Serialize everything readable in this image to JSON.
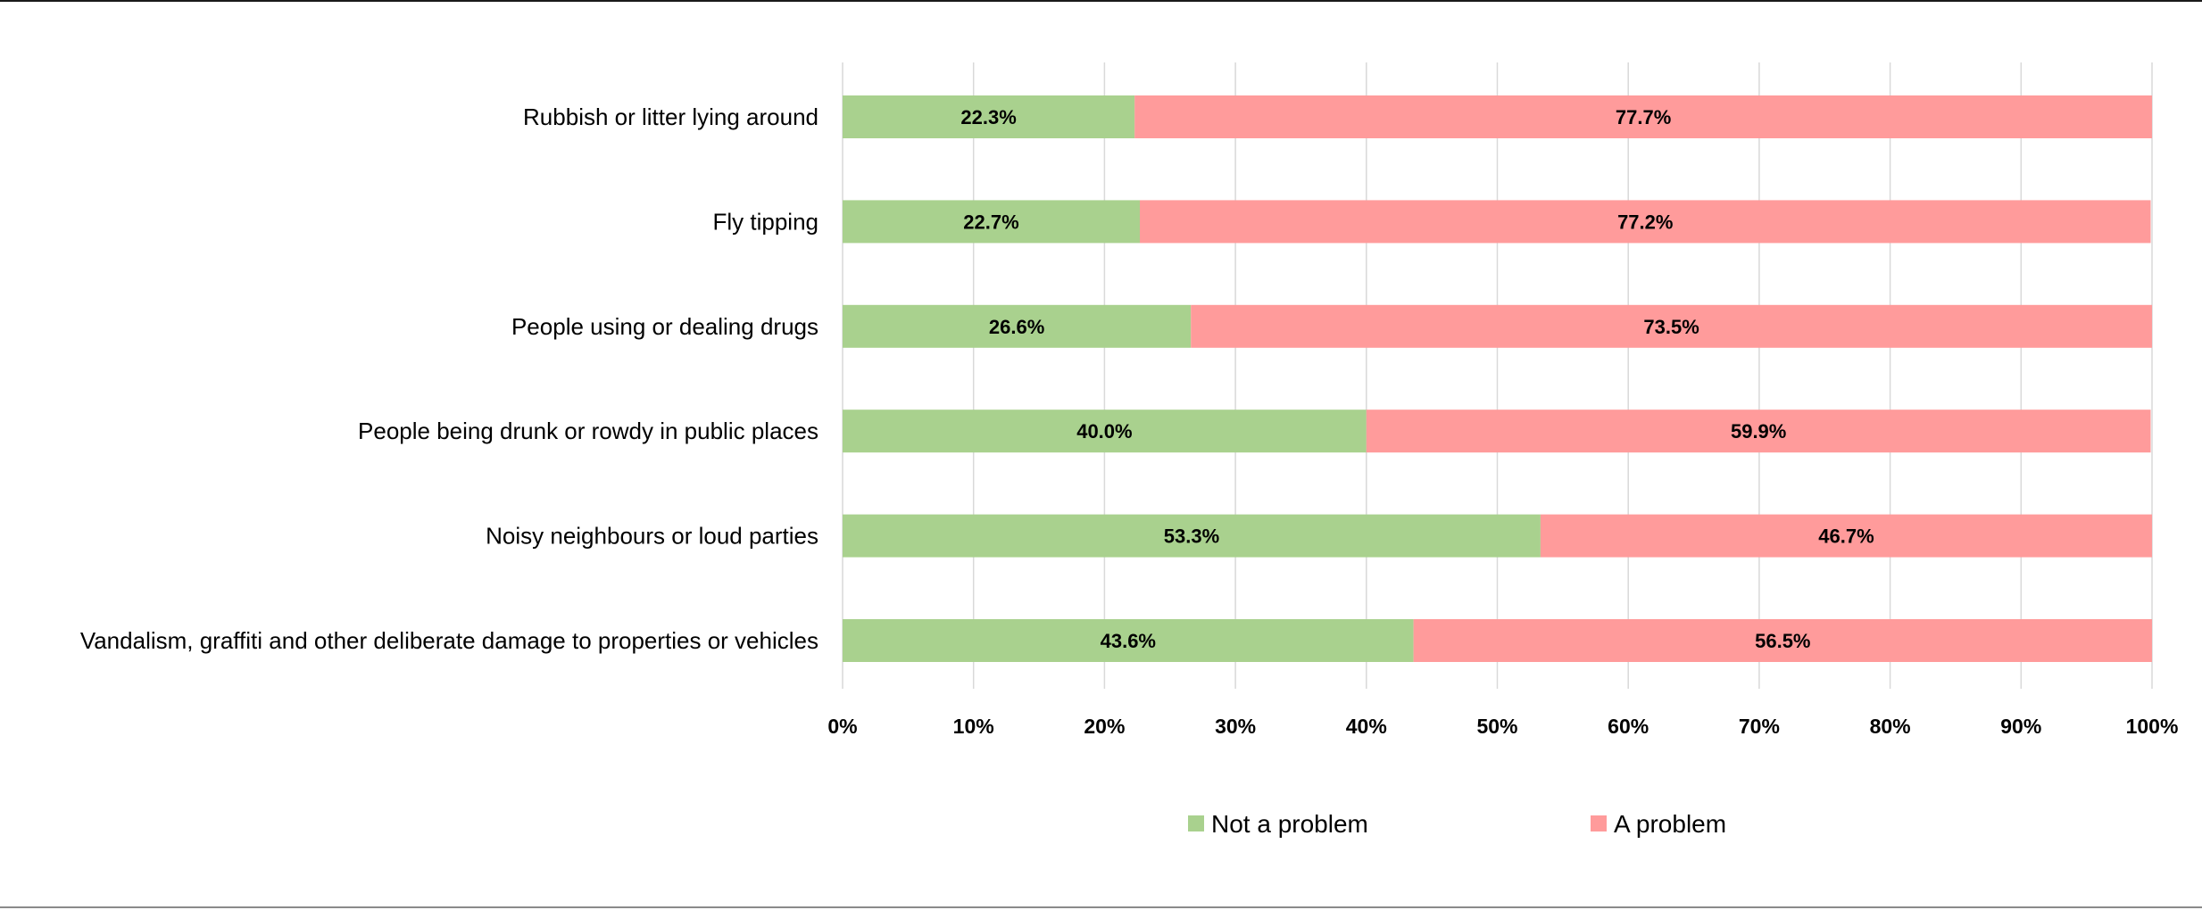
{
  "chart_data": {
    "type": "bar",
    "orientation": "horizontal",
    "stacked": true,
    "percent_stacked": true,
    "categories": [
      "Rubbish or litter lying around",
      "Fly tipping",
      "People using or dealing drugs",
      "People being drunk or rowdy in public places",
      "Noisy neighbours or loud parties",
      "Vandalism, graffiti and other deliberate damage to properties or vehicles"
    ],
    "series": [
      {
        "name": "Not a problem",
        "color": "#a9d18e",
        "values": [
          22.3,
          22.7,
          26.6,
          40.0,
          53.3,
          43.6
        ],
        "labels": [
          "22.3%",
          "22.7%",
          "26.6%",
          "40.0%",
          "53.3%",
          "43.6%"
        ]
      },
      {
        "name": "A problem",
        "color": "#ff9b9b",
        "values": [
          77.7,
          77.2,
          73.5,
          59.9,
          46.7,
          56.5
        ],
        "labels": [
          "77.7%",
          "77.2%",
          "73.5%",
          "59.9%",
          "46.7%",
          "56.5%"
        ]
      }
    ],
    "xlim": [
      0,
      100
    ],
    "x_ticks": [
      "0%",
      "10%",
      "20%",
      "30%",
      "40%",
      "50%",
      "60%",
      "70%",
      "80%",
      "90%",
      "100%"
    ],
    "title": "",
    "xlabel": "",
    "ylabel": "",
    "grid": true,
    "legend_position": "bottom",
    "gridline_color": "#d9d9d9"
  }
}
